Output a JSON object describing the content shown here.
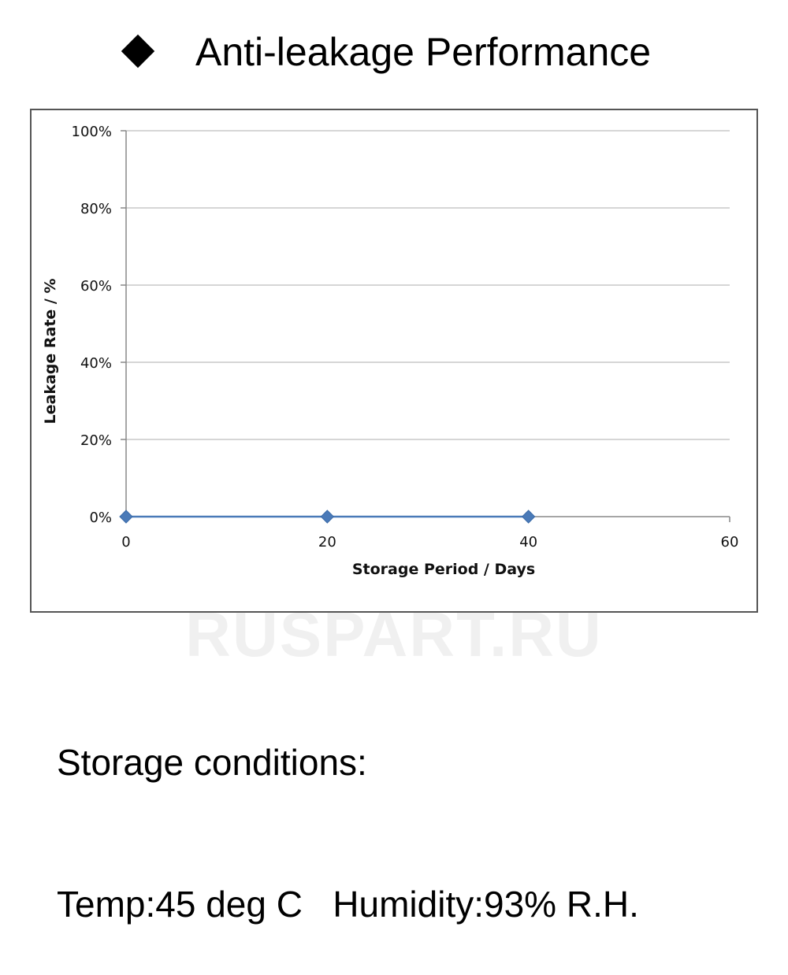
{
  "title": "Anti-leakage Performance",
  "watermark": "RUSPART.RU",
  "conditions": {
    "line1": "Storage conditions:",
    "line2": "Temp:45 deg C   Humidity:93% R.H."
  },
  "colors": {
    "series": "#4a7ab8",
    "grid": "#c8c8c8"
  },
  "chart_data": {
    "type": "line",
    "title": "Anti-leakage Performance",
    "xlabel": "Storage Period / Days",
    "ylabel": "Leakage Rate / %",
    "xlim": [
      0,
      60
    ],
    "ylim": [
      0,
      100
    ],
    "x_ticks": [
      0,
      20,
      40,
      60
    ],
    "x_tick_labels": [
      "0",
      "20",
      "40",
      "60"
    ],
    "y_ticks": [
      0,
      20,
      40,
      60,
      80,
      100
    ],
    "y_tick_labels": [
      "0%",
      "20%",
      "40%",
      "60%",
      "80%",
      "100%"
    ],
    "grid": true,
    "legend": "none",
    "series": [
      {
        "x": [
          0,
          20,
          40
        ],
        "values": [
          0,
          0,
          0
        ]
      }
    ]
  }
}
